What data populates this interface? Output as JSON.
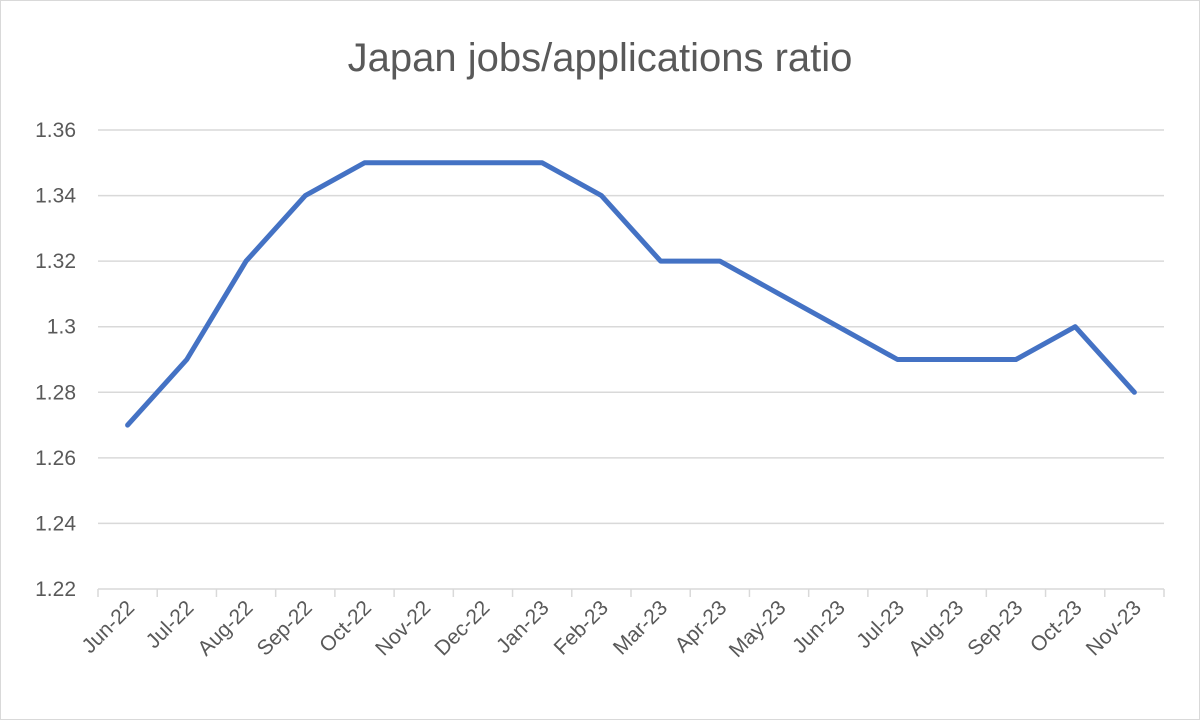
{
  "chart_data": {
    "type": "line",
    "title": "Japan jobs/applications ratio",
    "xlabel": "",
    "ylabel": "",
    "categories": [
      "Jun-22",
      "Jul-22",
      "Aug-22",
      "Sep-22",
      "Oct-22",
      "Nov-22",
      "Dec-22",
      "Jan-23",
      "Feb-23",
      "Mar-23",
      "Apr-23",
      "May-23",
      "Jun-23",
      "Jul-23",
      "Aug-23",
      "Sep-23",
      "Oct-23",
      "Nov-23"
    ],
    "series": [
      {
        "values": [
          1.27,
          1.29,
          1.32,
          1.34,
          1.35,
          1.35,
          1.35,
          1.35,
          1.34,
          1.32,
          1.32,
          1.31,
          1.3,
          1.29,
          1.29,
          1.29,
          1.3,
          1.28
        ],
        "color": "#4472c4"
      }
    ],
    "ylim": [
      1.22,
      1.36
    ],
    "yticks": [
      "1.22",
      "1.24",
      "1.26",
      "1.28",
      "1.3",
      "1.32",
      "1.34",
      "1.36"
    ],
    "grid": true,
    "legend": "none"
  }
}
